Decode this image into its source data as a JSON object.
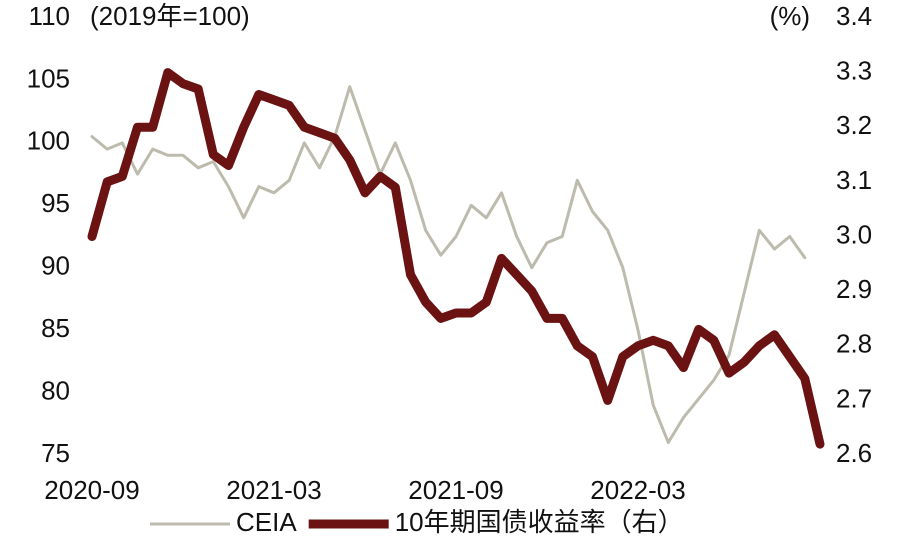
{
  "chart_data": {
    "type": "line",
    "left_axis_label": "(2019年=100)",
    "right_axis_label": "(%)",
    "categories": [
      "2020-09",
      null,
      null,
      null,
      null,
      null,
      null,
      null,
      null,
      null,
      null,
      null,
      "2021-03",
      null,
      null,
      null,
      null,
      null,
      null,
      null,
      null,
      null,
      null,
      null,
      "2021-09",
      null,
      null,
      null,
      null,
      null,
      null,
      null,
      null,
      null,
      null,
      null,
      "2022-03",
      null,
      null,
      null,
      null,
      null,
      null,
      null,
      null,
      null,
      null,
      null,
      null
    ],
    "series": [
      {
        "name": "CEIA",
        "color": "#bdbbad",
        "axis": "y",
        "values": [
          100.5,
          99.5,
          100,
          97.5,
          99.5,
          99,
          99,
          98,
          98.5,
          96.5,
          94,
          96.5,
          96,
          97,
          100,
          98,
          100.5,
          104.5,
          101,
          97.5,
          100,
          97,
          93,
          91,
          92.5,
          95,
          94,
          96,
          92.5,
          90,
          92,
          92.5,
          97,
          94.5,
          93,
          90,
          85,
          79,
          76,
          78,
          79.5,
          81,
          83,
          88,
          93,
          91.5,
          92.5,
          90.8,
          null
        ]
      },
      {
        "name": "10年期国债收益率（右）",
        "color": "#6b1212",
        "axis": "y2",
        "values": [
          3.0,
          3.1,
          3.11,
          3.2,
          3.2,
          3.3,
          3.28,
          3.27,
          3.15,
          3.13,
          3.2,
          3.26,
          3.25,
          3.24,
          3.2,
          3.19,
          3.18,
          3.14,
          3.08,
          3.11,
          3.09,
          2.93,
          2.88,
          2.85,
          2.86,
          2.86,
          2.88,
          2.96,
          2.93,
          2.9,
          2.85,
          2.85,
          2.8,
          2.78,
          2.7,
          2.78,
          2.8,
          2.81,
          2.8,
          2.76,
          2.83,
          2.81,
          2.75,
          2.77,
          2.8,
          2.82,
          2.78,
          2.74,
          2.62
        ]
      }
    ],
    "ylim": [
      75,
      110
    ],
    "yticks": [
      75,
      80,
      85,
      90,
      95,
      100,
      105,
      110
    ],
    "y2lim": [
      2.6,
      3.4
    ],
    "y2ticks": [
      2.6,
      2.7,
      2.8,
      2.9,
      {
        "value": 3.0,
        "label": "3.0"
      },
      3.1,
      3.2,
      3.3,
      3.4
    ],
    "grid": false
  }
}
